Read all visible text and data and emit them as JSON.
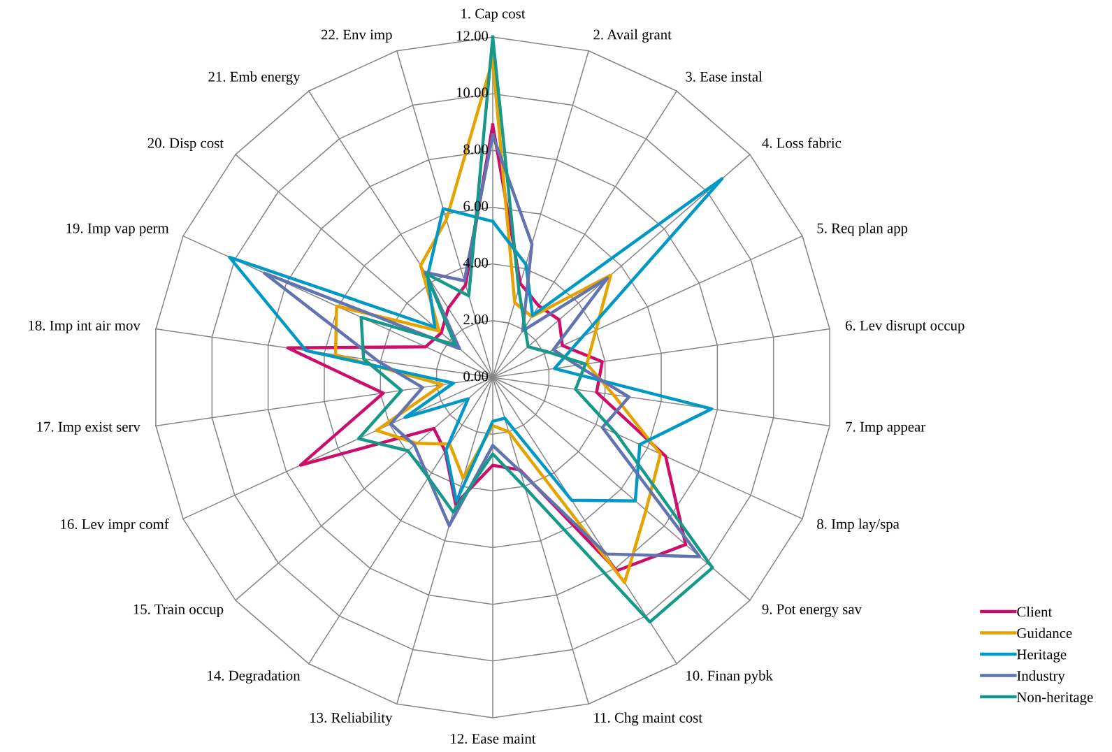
{
  "chart_data": {
    "type": "radar",
    "categories": [
      "1. Cap cost",
      "2. Avail grant",
      "3. Ease instal",
      "4. Loss fabric",
      "5. Req plan app",
      "6. Lev disrupt occup",
      "7. Imp appear",
      "8. Imp lay/spa",
      "9. Pot energy sav",
      "10. Finan pybk",
      "11. Chg maint cost",
      "12. Ease maint",
      "13. Reliability",
      "14. Degradation",
      "15. Train occup",
      "16. Lev impr comf",
      "17. Imp exist serv",
      "18. Imp int air mov",
      "19. Imp vap perm",
      "20. Disp cost",
      "21. Emb energy",
      "22. Env imp"
    ],
    "series": [
      {
        "name": "Client",
        "color": "#cc0e6a",
        "values": [
          8.9,
          3.45,
          3.0,
          3.1,
          2.7,
          3.9,
          3.7,
          6.7,
          9.0,
          8.1,
          3.4,
          3.1,
          4.65,
          3.1,
          2.75,
          7.45,
          3.9,
          7.3,
          2.6,
          2.4,
          2.9,
          3.4
        ]
      },
      {
        "name": "Guidance",
        "color": "#e6a300",
        "values": [
          11.2,
          2.75,
          2.55,
          5.5,
          4.0,
          3.35,
          4.3,
          6.5,
          7.15,
          8.6,
          2.0,
          1.7,
          3.7,
          2.8,
          3.55,
          4.5,
          1.8,
          5.6,
          6.05,
          2.5,
          4.7,
          5.8
        ]
      },
      {
        "name": "Heritage",
        "color": "#0099c6",
        "values": [
          5.5,
          4.15,
          2.6,
          10.7,
          3.5,
          2.2,
          7.8,
          5.7,
          6.65,
          5.15,
          1.5,
          1.55,
          4.55,
          3.05,
          1.15,
          3.4,
          1.4,
          6.65,
          10.2,
          2.7,
          4.25,
          6.2
        ]
      },
      {
        "name": "Industry",
        "color": "#6173b0",
        "values": [
          8.55,
          4.9,
          1.95,
          5.35,
          2.35,
          3.0,
          4.85,
          4.25,
          9.65,
          7.4,
          3.45,
          2.4,
          5.45,
          4.2,
          3.65,
          3.95,
          2.5,
          4.1,
          8.85,
          1.55,
          4.4,
          3.55
        ]
      },
      {
        "name": "Non-heritage",
        "color": "#16998a",
        "values": [
          12.0,
          3.25,
          2.1,
          1.65,
          2.15,
          3.3,
          2.95,
          4.8,
          10.25,
          10.25,
          4.05,
          2.7,
          4.95,
          4.2,
          3.95,
          5.2,
          3.25,
          4.6,
          5.1,
          1.75,
          4.35,
          3.0
        ]
      }
    ],
    "ylim": [
      0,
      12
    ],
    "yticks": [
      {
        "value": 0,
        "label": "0.00"
      },
      {
        "value": 2,
        "label": "2.00"
      },
      {
        "value": 4,
        "label": "4.00"
      },
      {
        "value": 6,
        "label": "6.00"
      },
      {
        "value": 8,
        "label": "8.00"
      },
      {
        "value": 10,
        "label": "10.00"
      },
      {
        "value": 12,
        "label": "12.00"
      }
    ],
    "grid": true,
    "legend": "bottom right",
    "marker": "none",
    "line_style": "solid"
  }
}
